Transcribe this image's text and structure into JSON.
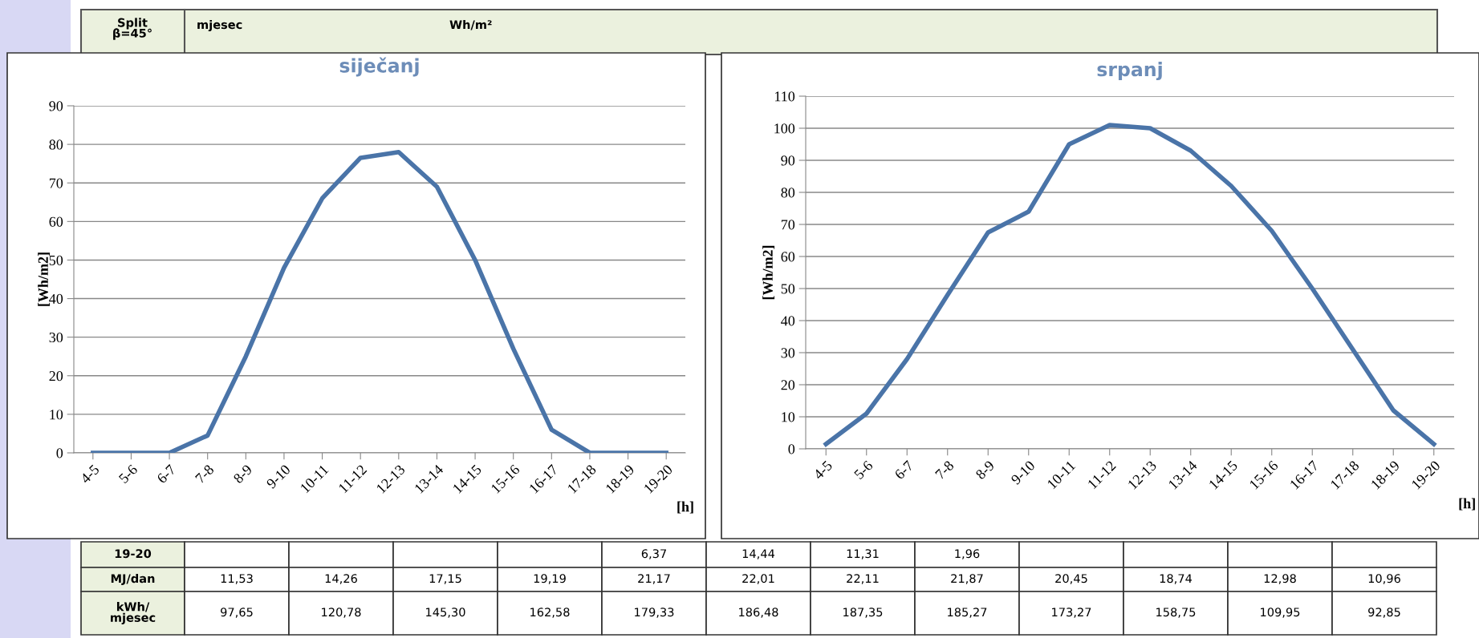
{
  "chart_data": [
    {
      "type": "line",
      "title": "siječanj",
      "ylabel": "[Wh/m2]",
      "xlabel": "[h]",
      "categories": [
        "4-5",
        "5-6",
        "6-7",
        "7-8",
        "8-9",
        "9-10",
        "10-11",
        "11-12",
        "12-13",
        "13-14",
        "14-15",
        "15-16",
        "16-17",
        "17-18",
        "18-19",
        "19-20"
      ],
      "series": [
        {
          "color": "#4a74a8",
          "values": [
            0,
            0,
            0,
            4.5,
            25,
            48,
            66,
            76.5,
            78,
            69,
            50,
            27,
            6,
            0,
            0,
            0
          ]
        }
      ],
      "ylim": [
        0,
        90
      ],
      "yticks": [
        0,
        10,
        20,
        30,
        40,
        50,
        60,
        70,
        80,
        90
      ],
      "grid": "y",
      "marker": "none",
      "line_style": "solid",
      "legend": false
    },
    {
      "type": "line",
      "title": "srpanj",
      "ylabel": "[Wh/m2]",
      "xlabel": "[h]",
      "categories": [
        "4-5",
        "5-6",
        "6-7",
        "7-8",
        "8-9",
        "9-10",
        "10-11",
        "11-12",
        "12-13",
        "13-14",
        "14-15",
        "15-16",
        "16-17",
        "17-18",
        "18-19",
        "19-20"
      ],
      "series": [
        {
          "color": "#4a74a8",
          "values": [
            1.5,
            11,
            28,
            48,
            67.5,
            74,
            95,
            101,
            100,
            93,
            82,
            68,
            50,
            31,
            12,
            1.5
          ]
        }
      ],
      "ylim": [
        0,
        110
      ],
      "yticks": [
        0,
        10,
        20,
        30,
        40,
        50,
        60,
        70,
        80,
        90,
        100,
        110
      ],
      "grid": "y",
      "marker": "none",
      "line_style": "solid",
      "legend": false
    },
    {
      "type": "other",
      "annotations": [
        "Split\nβ=45°",
        "mjesec",
        "Wh/m²"
      ],
      "y_categories": [
        "19-20",
        "MJ/dan",
        "kWh/\nmjesec"
      ],
      "cell_labels": [
        [
          null,
          null,
          null,
          null,
          "6,37",
          "14,44",
          "11,31",
          "1,96",
          null,
          null,
          null,
          null
        ],
        [
          "11,53",
          "14,26",
          "17,15",
          "19,19",
          "21,17",
          "22,01",
          "22,11",
          "21,87",
          "20,45",
          "18,74",
          "12,98",
          "10,96"
        ],
        [
          "97,65",
          "120,78",
          "145,30",
          "162,58",
          "179,33",
          "186,48",
          "187,35",
          "185,27",
          "173,27",
          "158,75",
          "109,95",
          "92,85"
        ]
      ]
    }
  ]
}
